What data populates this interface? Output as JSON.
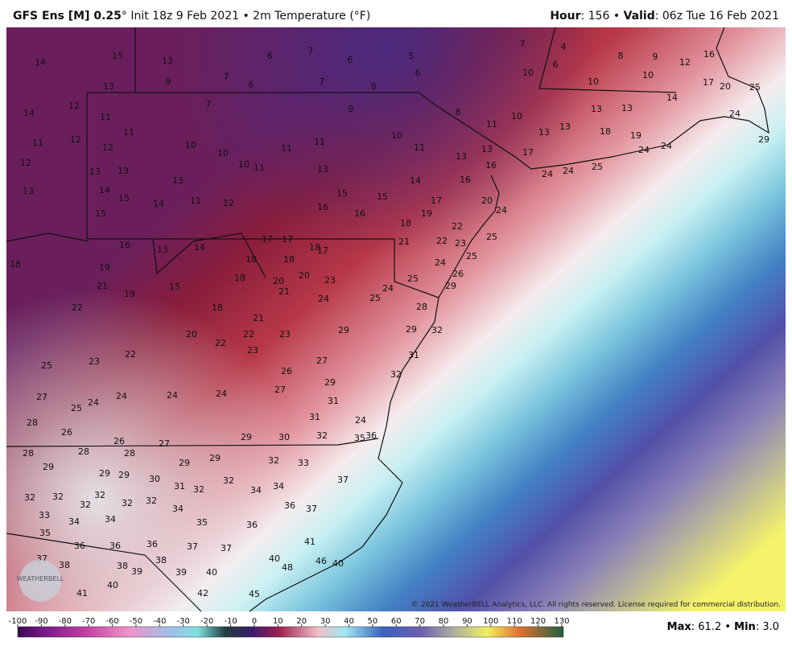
{
  "header": {
    "model": "GFS Ens [M] 0.25",
    "degree": "°",
    "init": "Init 18z 9 Feb 2021 • 2m Temperature (°F)",
    "hour_label": "Hour",
    "hour_value": ": 156 • ",
    "valid_label": "Valid",
    "valid_value": ": 06z Tue 16 Feb 2021"
  },
  "footer": {
    "max_label": "Max",
    "max_value": ": 61.2 • ",
    "min_label": "Min",
    "min_value": ": 3.0"
  },
  "copyright": "© 2021 WeatherBELL Analytics, LLC. All rights reserved. License required for commercial distribution.",
  "logo": "WEATHERBELL",
  "colorbar_ticks": [
    -100,
    -90,
    -80,
    -70,
    -60,
    -50,
    -40,
    -30,
    -20,
    -10,
    0,
    10,
    20,
    30,
    40,
    50,
    60,
    70,
    80,
    90,
    100,
    110,
    120,
    130
  ],
  "stations": [
    14,
    15,
    13,
    9,
    13,
    6,
    7,
    6,
    5,
    7,
    4,
    8,
    9,
    12,
    16,
    7,
    6,
    7,
    8,
    6,
    10,
    6,
    10,
    10,
    17,
    20,
    25,
    12,
    14,
    11,
    7,
    9,
    8,
    13,
    13,
    14,
    11,
    11,
    12,
    11,
    10,
    13,
    13,
    18,
    19,
    24,
    12,
    10,
    10,
    11,
    11,
    10,
    11,
    13,
    13,
    17,
    24,
    24,
    29,
    12,
    13,
    13,
    10,
    11,
    13,
    16,
    24,
    24,
    25,
    13,
    14,
    13,
    14,
    16,
    15,
    14,
    11,
    12,
    15,
    15,
    17,
    20,
    24,
    15,
    16,
    16,
    18,
    19,
    22,
    16,
    13,
    14,
    17,
    17,
    18,
    17,
    21,
    22,
    23,
    25,
    18,
    19,
    18,
    18,
    24,
    25,
    21,
    15,
    18,
    20,
    20,
    23,
    25,
    26,
    19,
    21,
    24,
    24,
    29,
    22,
    18,
    21,
    28,
    25,
    20,
    22,
    23,
    29,
    29,
    32,
    23,
    22,
    22,
    23,
    31,
    25,
    27,
    26,
    32,
    27,
    24,
    24,
    24,
    24,
    27,
    29,
    31,
    25,
    28,
    26,
    31,
    24,
    26,
    27,
    29,
    30,
    32,
    35,
    36,
    28,
    28,
    28,
    32,
    33,
    29,
    29,
    29,
    29,
    29,
    30,
    31,
    32,
    32,
    34,
    34,
    37,
    32,
    32,
    32,
    32,
    32,
    32,
    34,
    36,
    37,
    33,
    34,
    34,
    35,
    36,
    35,
    36,
    36,
    36,
    37,
    37,
    41,
    37,
    38,
    38,
    38,
    39,
    39,
    40,
    40,
    48,
    46,
    40,
    40,
    41,
    42,
    45
  ]
}
